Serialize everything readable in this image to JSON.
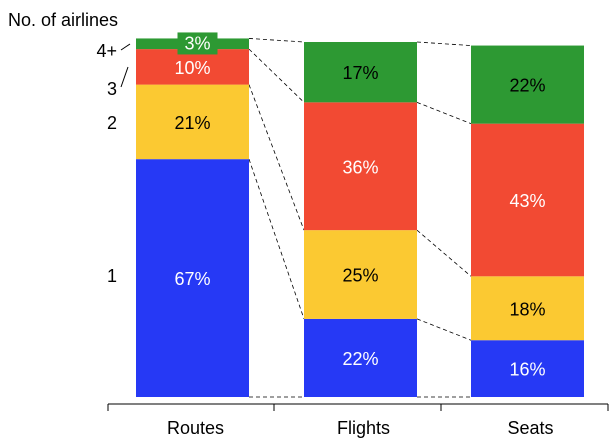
{
  "chart_data": {
    "type": "bar",
    "stacked": true,
    "percent": true,
    "title": "No. of airlines",
    "categories": [
      "Routes",
      "Flights",
      "Seats"
    ],
    "ylim": [
      0,
      100
    ],
    "series": [
      {
        "name": "1",
        "values": [
          67,
          22,
          16
        ],
        "labels": [
          "67%",
          "22%",
          "16%"
        ],
        "color": "#2639f5"
      },
      {
        "name": "2",
        "values": [
          21,
          25,
          18
        ],
        "labels": [
          "21%",
          "25%",
          "18%"
        ],
        "color": "#fbc932"
      },
      {
        "name": "3",
        "values": [
          10,
          36,
          43
        ],
        "labels": [
          "10%",
          "36%",
          "43%"
        ],
        "color": "#f24a33"
      },
      {
        "name": "4+",
        "values": [
          3,
          17,
          22
        ],
        "labels": [
          "3%",
          "17%",
          "22%"
        ],
        "color": "#2d9933"
      }
    ],
    "label_colors": [
      "#ffffff",
      "#000000",
      "#ffffff",
      "#000000"
    ],
    "connectors": "dashed lines between bars",
    "grid": false
  }
}
